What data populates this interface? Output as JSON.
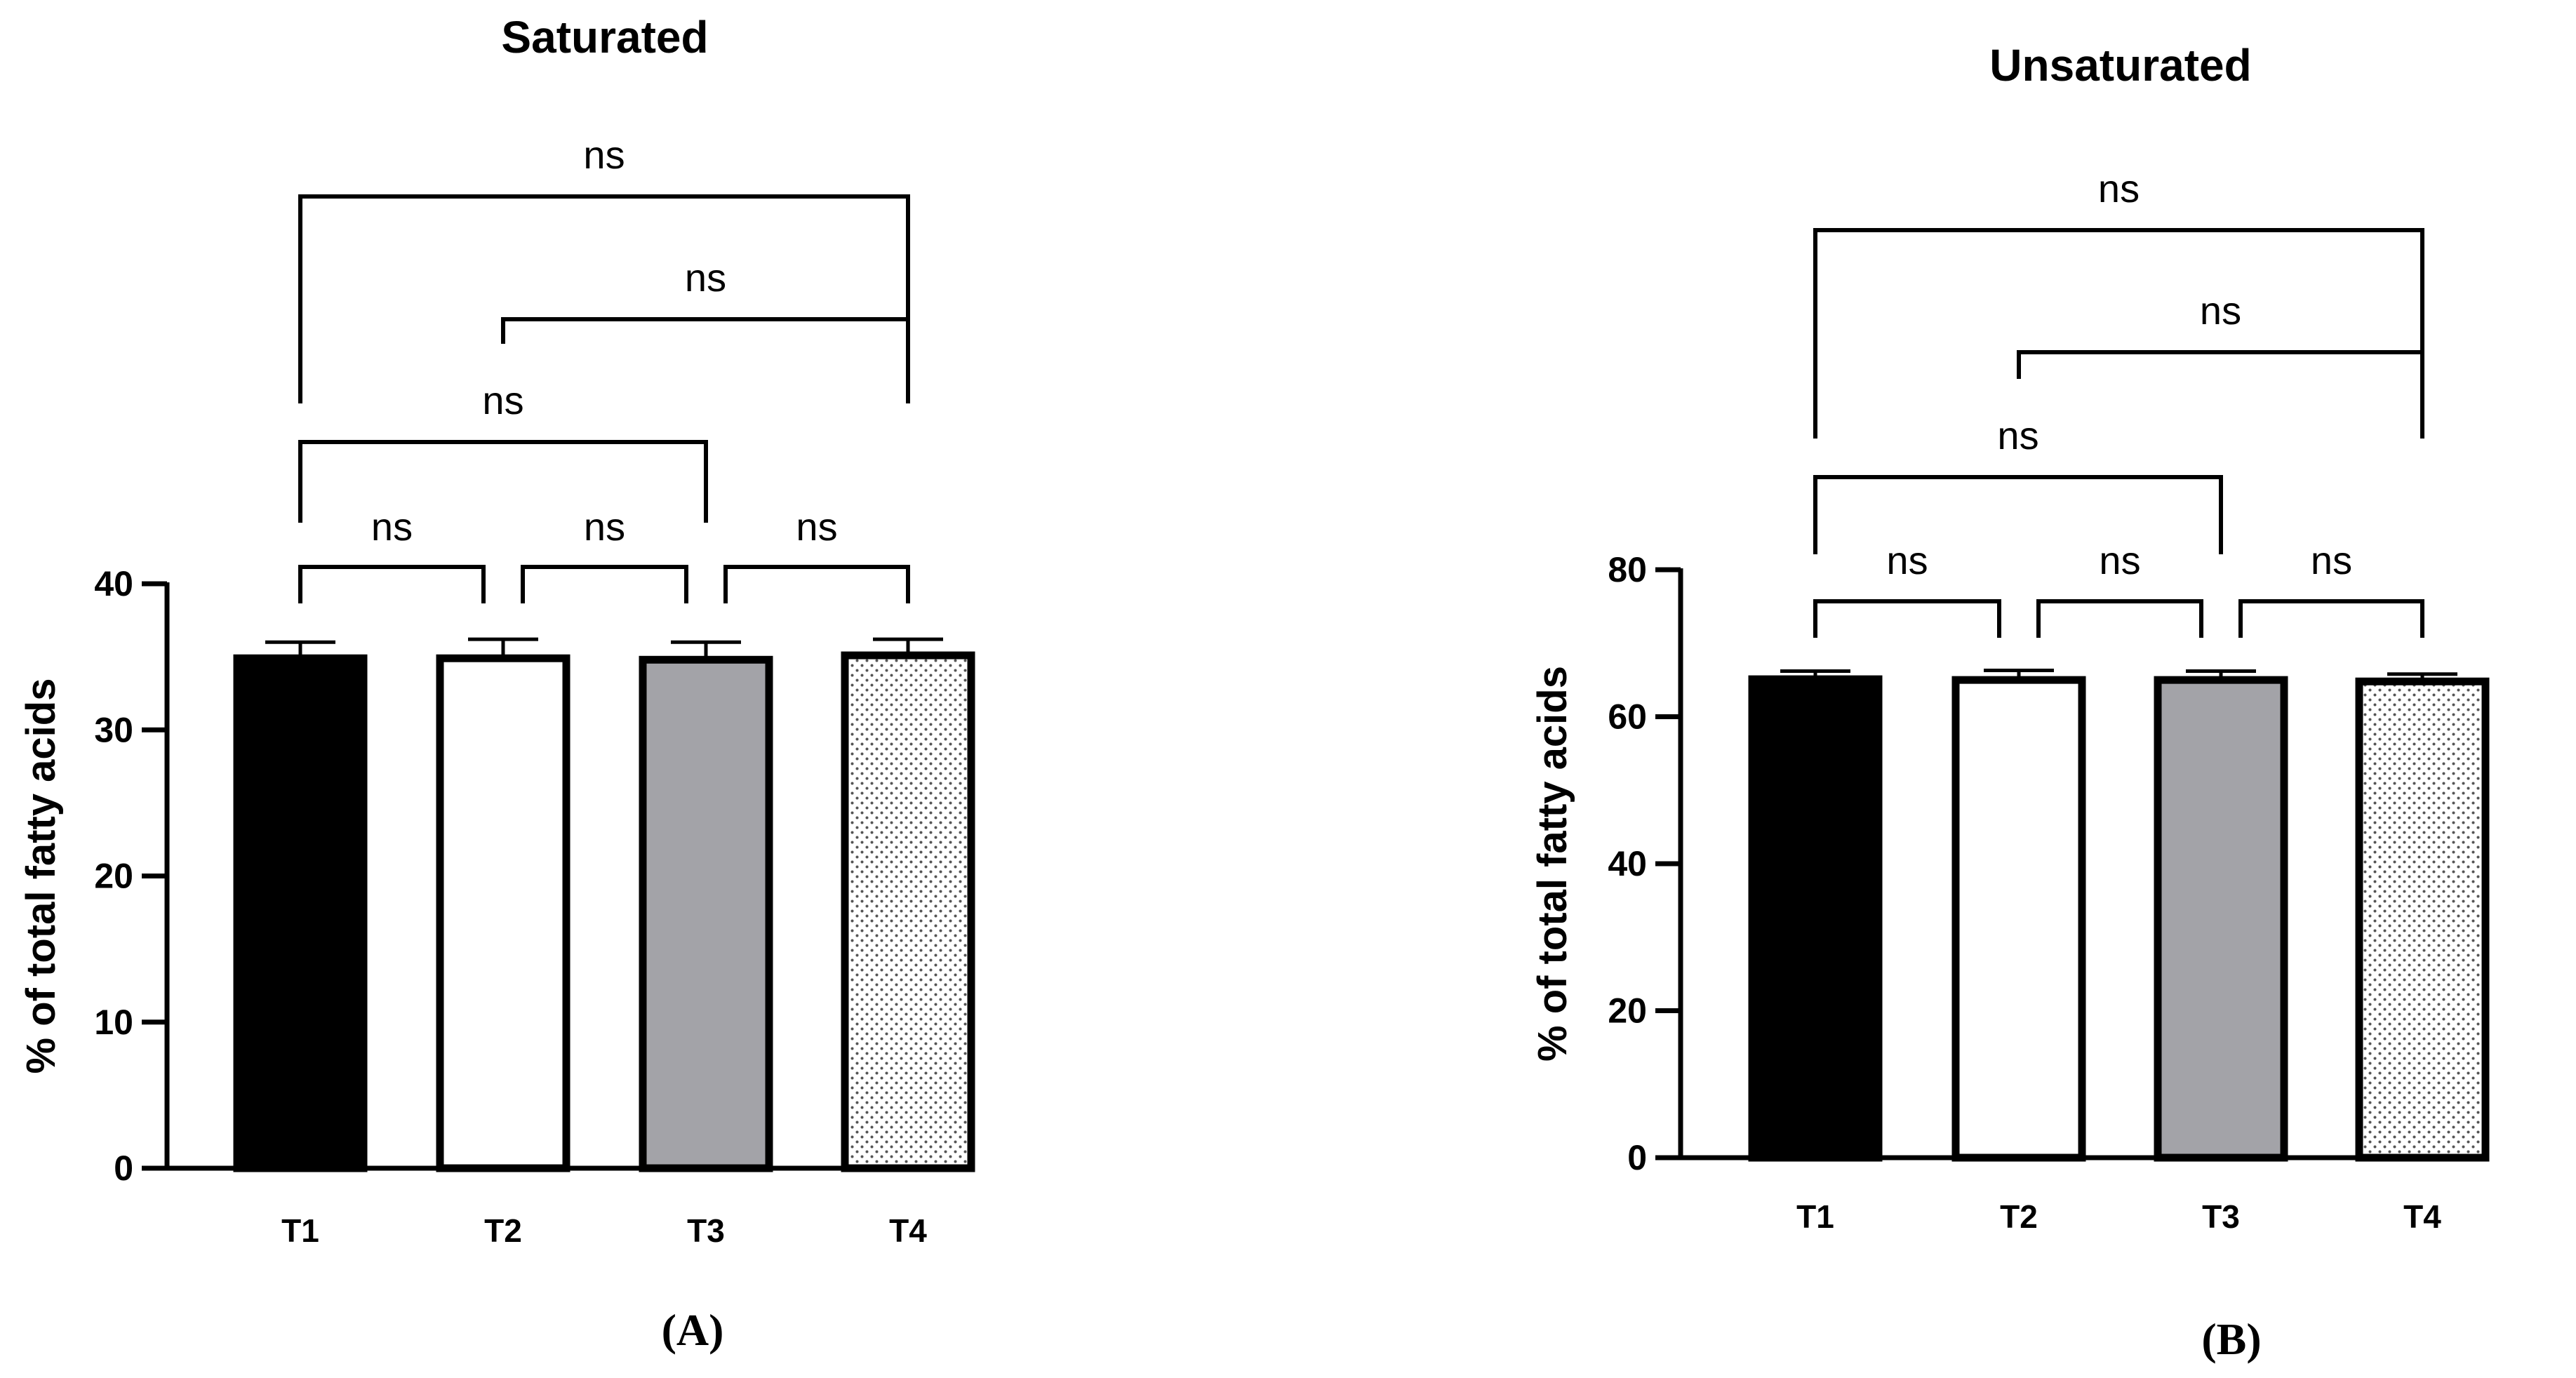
{
  "chart_data": [
    {
      "type": "bar",
      "panel_label": "(A)",
      "title": "Saturated",
      "xlabel": "",
      "ylabel": "% of total fatty acids",
      "ylim": [
        0,
        40
      ],
      "yticks": [
        0,
        10,
        20,
        30,
        40
      ],
      "categories": [
        "T1",
        "T2",
        "T3",
        "T4"
      ],
      "values": [
        34.9,
        34.9,
        34.8,
        35.1
      ],
      "errors": [
        1.1,
        1.3,
        1.2,
        1.1
      ],
      "fills": [
        "black",
        "white",
        "gray",
        "dotted"
      ],
      "comparisons": [
        {
          "from": "T1",
          "to": "T2",
          "label": "ns"
        },
        {
          "from": "T2",
          "to": "T3",
          "label": "ns"
        },
        {
          "from": "T3",
          "to": "T4",
          "label": "ns"
        },
        {
          "from": "T1",
          "to": "T3",
          "label": "ns"
        },
        {
          "from": "T2",
          "to": "T4",
          "label": "ns"
        },
        {
          "from": "T1",
          "to": "T4",
          "label": "ns"
        }
      ]
    },
    {
      "type": "bar",
      "panel_label": "(B)",
      "title": "Unsaturated",
      "xlabel": "",
      "ylabel": "% of total fatty acids",
      "ylim": [
        0,
        80
      ],
      "yticks": [
        0,
        20,
        40,
        60,
        80
      ],
      "categories": [
        "T1",
        "T2",
        "T3",
        "T4"
      ],
      "values": [
        65.1,
        65.0,
        65.0,
        64.8
      ],
      "errors": [
        1.1,
        1.3,
        1.2,
        1.0
      ],
      "fills": [
        "black",
        "white",
        "gray",
        "dotted"
      ],
      "comparisons": [
        {
          "from": "T1",
          "to": "T2",
          "label": "ns"
        },
        {
          "from": "T2",
          "to": "T3",
          "label": "ns"
        },
        {
          "from": "T3",
          "to": "T4",
          "label": "ns"
        },
        {
          "from": "T1",
          "to": "T3",
          "label": "ns"
        },
        {
          "from": "T2",
          "to": "T4",
          "label": "ns"
        },
        {
          "from": "T1",
          "to": "T4",
          "label": "ns"
        }
      ]
    }
  ],
  "colors": {
    "bar_black": "#000000",
    "bar_white": "#ffffff",
    "bar_gray": "#a3a3a8",
    "outline": "#000000",
    "dot": "#555555"
  }
}
